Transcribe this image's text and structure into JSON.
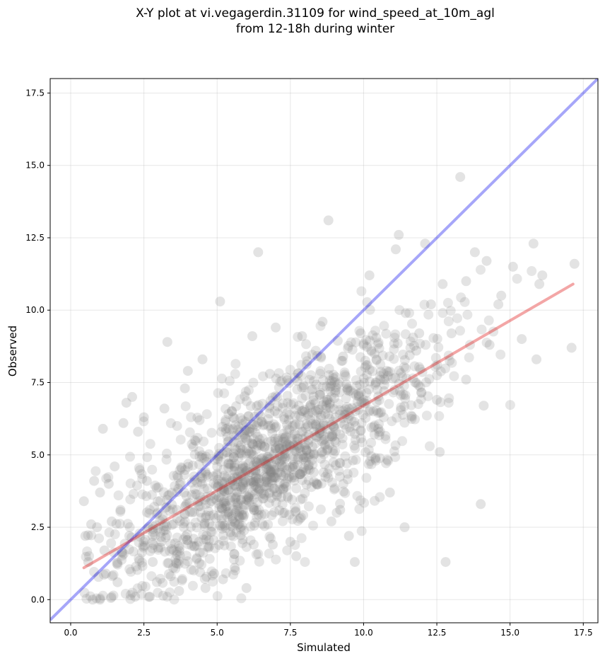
{
  "chart_data": {
    "type": "scatter",
    "title_line1": "X-Y plot at vi.vegagerdin.31109 for wind_speed_at_10m_agl",
    "title_line2": "from 12-18h during winter",
    "xlabel": "Simulated",
    "ylabel": "Observed",
    "xlim": [
      -0.7,
      18.0
    ],
    "ylim": [
      -0.8,
      18.0
    ],
    "xticks": [
      "0.0",
      "2.5",
      "5.0",
      "7.5",
      "10.0",
      "12.5",
      "15.0",
      "17.5"
    ],
    "yticks": [
      "0.0",
      "2.5",
      "5.0",
      "7.5",
      "10.0",
      "12.5",
      "15.0",
      "17.5"
    ],
    "grid": true,
    "identity_line": {
      "from": [
        -0.7,
        -0.7
      ],
      "to": [
        18.0,
        18.0
      ],
      "color": "#0000ee"
    },
    "regression_line": {
      "from": [
        0.45,
        1.1
      ],
      "to": [
        17.15,
        10.9
      ],
      "color": "#dd0000"
    },
    "marker_color": "#808080",
    "point_count_estimate": 1400,
    "points": [
      [
        0.45,
        3.4
      ],
      [
        0.5,
        2.2
      ],
      [
        0.6,
        1.3
      ],
      [
        0.7,
        2.6
      ],
      [
        0.75,
        0.0
      ],
      [
        0.8,
        4.1
      ],
      [
        0.9,
        2.5
      ],
      [
        1.0,
        0.0
      ],
      [
        1.0,
        3.7
      ],
      [
        1.1,
        5.9
      ],
      [
        1.15,
        1.7
      ],
      [
        1.2,
        0.9
      ],
      [
        1.3,
        4.0
      ],
      [
        1.4,
        2.7
      ],
      [
        1.5,
        4.6
      ],
      [
        1.6,
        0.6
      ],
      [
        1.7,
        3.1
      ],
      [
        1.8,
        6.1
      ],
      [
        1.9,
        6.8
      ],
      [
        2.0,
        2.2
      ],
      [
        2.1,
        7.0
      ],
      [
        2.2,
        0.1
      ],
      [
        2.3,
        5.8
      ],
      [
        2.5,
        6.3
      ],
      [
        2.6,
        4.1
      ],
      [
        2.7,
        0.1
      ],
      [
        2.8,
        1.3
      ],
      [
        3.1,
        2.0
      ],
      [
        3.2,
        6.6
      ],
      [
        3.3,
        8.9
      ],
      [
        3.5,
        1.1
      ],
      [
        3.7,
        0.3
      ],
      [
        3.9,
        7.3
      ],
      [
        4.0,
        7.9
      ],
      [
        4.2,
        2.1
      ],
      [
        4.4,
        6.2
      ],
      [
        4.5,
        8.3
      ],
      [
        4.6,
        0.4
      ],
      [
        4.9,
        0.9
      ],
      [
        5.1,
        10.3
      ],
      [
        5.2,
        0.7
      ],
      [
        5.3,
        5.9
      ],
      [
        5.6,
        1.1
      ],
      [
        5.8,
        3.9
      ],
      [
        6.0,
        0.4
      ],
      [
        6.2,
        9.1
      ],
      [
        6.4,
        12.0
      ],
      [
        6.6,
        4.8
      ],
      [
        6.9,
        1.9
      ],
      [
        7.0,
        9.4
      ],
      [
        7.3,
        3.0
      ],
      [
        7.5,
        2.0
      ],
      [
        7.7,
        1.5
      ],
      [
        7.9,
        9.1
      ],
      [
        8.3,
        4.4
      ],
      [
        8.6,
        9.6
      ],
      [
        8.8,
        13.1
      ],
      [
        8.9,
        2.7
      ],
      [
        9.2,
        3.1
      ],
      [
        9.5,
        2.2
      ],
      [
        9.7,
        1.3
      ],
      [
        9.9,
        9.2
      ],
      [
        10.2,
        11.2
      ],
      [
        10.5,
        5.9
      ],
      [
        10.9,
        3.7
      ],
      [
        11.1,
        12.1
      ],
      [
        11.2,
        12.6
      ],
      [
        11.4,
        2.5
      ],
      [
        11.8,
        8.6
      ],
      [
        12.1,
        12.3
      ],
      [
        12.3,
        10.2
      ],
      [
        12.6,
        5.1
      ],
      [
        12.7,
        10.9
      ],
      [
        12.8,
        1.3
      ],
      [
        13.0,
        9.2
      ],
      [
        13.3,
        14.6
      ],
      [
        13.5,
        11.0
      ],
      [
        13.8,
        12.0
      ],
      [
        14.0,
        3.3
      ],
      [
        14.1,
        6.7
      ],
      [
        14.2,
        11.7
      ],
      [
        14.3,
        8.8
      ],
      [
        14.6,
        10.2
      ],
      [
        15.1,
        11.5
      ],
      [
        15.4,
        9.0
      ],
      [
        15.8,
        12.3
      ],
      [
        15.9,
        8.3
      ],
      [
        16.1,
        11.2
      ],
      [
        17.1,
        8.7
      ],
      [
        17.2,
        11.6
      ],
      [
        16.0,
        10.9
      ],
      [
        14.7,
        10.5
      ],
      [
        13.5,
        7.6
      ],
      [
        12.5,
        6.9
      ],
      [
        11.9,
        9.2
      ],
      [
        10.7,
        7.2
      ],
      [
        9.3,
        8.4
      ],
      [
        8.1,
        6.0
      ],
      [
        6.8,
        7.8
      ],
      [
        5.5,
        6.5
      ]
    ]
  }
}
